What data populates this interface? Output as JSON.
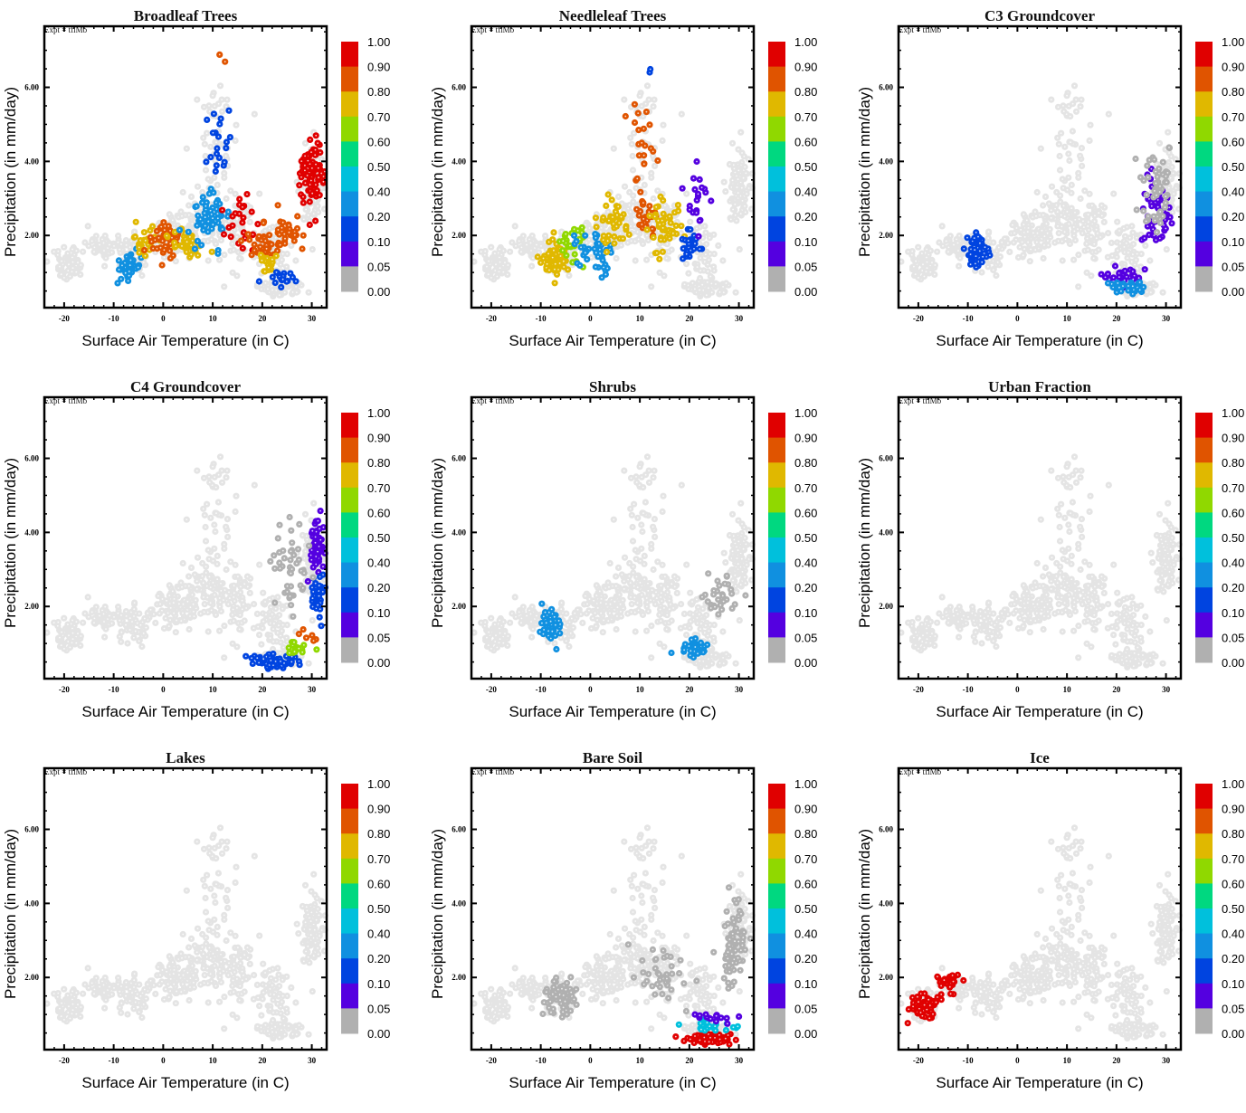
{
  "figure": {
    "expt_label": "Expt = tflMb",
    "xlabel": "Surface Air Temperature (in C)",
    "ylabel": "Precipitation (in mm/day)"
  },
  "chart_data": {
    "type": "scatter",
    "layout": "3x3 grid",
    "xlabel": "Surface Air Temperature (in C)",
    "ylabel": "Precipitation (in mm/day)",
    "xlim": [
      -24,
      33
    ],
    "ylim": [
      0.05,
      7.65
    ],
    "x_ticks": [
      "-20",
      "-10",
      "0",
      "10",
      "20",
      "30"
    ],
    "y_ticks": [
      "2.00",
      "4.00",
      "6.00"
    ],
    "x_tick_values": [
      -20,
      -10,
      0,
      10,
      20,
      30
    ],
    "y_tick_values": [
      2,
      4,
      6
    ],
    "colorbar": {
      "labels": [
        "1.00",
        "0.90",
        "0.80",
        "0.70",
        "0.60",
        "0.50",
        "0.40",
        "0.20",
        "0.10",
        "0.05",
        "0.00"
      ],
      "bins": [
        {
          "min": 0.9,
          "max": 1.0,
          "color": "#e00000"
        },
        {
          "min": 0.8,
          "max": 0.9,
          "color": "#e05400"
        },
        {
          "min": 0.7,
          "max": 0.8,
          "color": "#e0b800"
        },
        {
          "min": 0.6,
          "max": 0.7,
          "color": "#90d800"
        },
        {
          "min": 0.5,
          "max": 0.6,
          "color": "#00d880"
        },
        {
          "min": 0.4,
          "max": 0.5,
          "color": "#00c0dc"
        },
        {
          "min": 0.2,
          "max": 0.4,
          "color": "#1090e0"
        },
        {
          "min": 0.1,
          "max": 0.2,
          "color": "#0044e0"
        },
        {
          "min": 0.05,
          "max": 0.1,
          "color": "#5400e0"
        },
        {
          "min": 0.0,
          "max": 0.05,
          "color": "#b0b0b0"
        }
      ],
      "masked_color": "#e4e4e4"
    },
    "background_cloud": [
      {
        "x": -19,
        "y": 1.2,
        "sx": 3,
        "sy": 0.3,
        "n": 60
      },
      {
        "x": -12,
        "y": 1.7,
        "sx": 3,
        "sy": 0.3,
        "n": 50
      },
      {
        "x": -6,
        "y": 1.5,
        "sx": 3,
        "sy": 0.4,
        "n": 60
      },
      {
        "x": 2,
        "y": 2.0,
        "sx": 4,
        "sy": 0.5,
        "n": 90
      },
      {
        "x": 9,
        "y": 2.4,
        "sx": 4,
        "sy": 0.7,
        "n": 90
      },
      {
        "x": 15,
        "y": 2.2,
        "sx": 3,
        "sy": 0.8,
        "n": 70
      },
      {
        "x": 22,
        "y": 1.6,
        "sx": 3,
        "sy": 0.7,
        "n": 60
      },
      {
        "x": 24,
        "y": 0.6,
        "sx": 4,
        "sy": 0.25,
        "n": 60
      },
      {
        "x": 30,
        "y": 3.2,
        "sx": 2,
        "sy": 1.0,
        "n": 90
      },
      {
        "x": 10,
        "y": 4.3,
        "sx": 5,
        "sy": 0.8,
        "n": 30
      },
      {
        "x": 11,
        "y": 5.5,
        "sx": 3,
        "sy": 0.6,
        "n": 12
      }
    ],
    "panels": [
      {
        "title": "Broadleaf Trees",
        "clusters": [
          {
            "x": -7,
            "y": 1.2,
            "sx": 2,
            "sy": 0.3,
            "n": 40,
            "v": 0.3
          },
          {
            "x": -4,
            "y": 1.8,
            "sx": 2,
            "sy": 0.4,
            "n": 25,
            "v": 0.75
          },
          {
            "x": 1,
            "y": 1.9,
            "sx": 2.5,
            "sy": 0.4,
            "n": 45,
            "v": 0.85
          },
          {
            "x": 5,
            "y": 1.8,
            "sx": 2.5,
            "sy": 0.4,
            "n": 35,
            "v": 0.75
          },
          {
            "x": 9,
            "y": 2.4,
            "sx": 3,
            "sy": 0.8,
            "n": 60,
            "v": 0.3
          },
          {
            "x": 11,
            "y": 4.3,
            "sx": 3,
            "sy": 0.8,
            "n": 20,
            "v": 0.15
          },
          {
            "x": 16,
            "y": 2.3,
            "sx": 3,
            "sy": 0.6,
            "n": 25,
            "v": 0.95
          },
          {
            "x": 20,
            "y": 1.7,
            "sx": 3,
            "sy": 0.4,
            "n": 40,
            "v": 0.85
          },
          {
            "x": 21,
            "y": 1.2,
            "sx": 2,
            "sy": 0.3,
            "n": 20,
            "v": 0.75
          },
          {
            "x": 24,
            "y": 0.8,
            "sx": 3,
            "sy": 0.2,
            "n": 18,
            "v": 0.12
          },
          {
            "x": 30,
            "y": 3.6,
            "sx": 2,
            "sy": 0.8,
            "n": 90,
            "v": 0.95
          },
          {
            "x": 26,
            "y": 2.1,
            "sx": 3,
            "sy": 0.4,
            "n": 30,
            "v": 0.85
          },
          {
            "x": 12,
            "y": 6.8,
            "sx": 0.5,
            "sy": 0.3,
            "n": 2,
            "v": 0.85
          }
        ]
      },
      {
        "title": "Needleleaf Trees",
        "clusters": [
          {
            "x": -7,
            "y": 1.4,
            "sx": 2,
            "sy": 0.35,
            "n": 80,
            "v": 0.75
          },
          {
            "x": -4,
            "y": 1.8,
            "sx": 2,
            "sy": 0.5,
            "n": 25,
            "v": 0.65
          },
          {
            "x": 1,
            "y": 1.5,
            "sx": 3,
            "sy": 0.4,
            "n": 40,
            "v": 0.3
          },
          {
            "x": 5,
            "y": 2.2,
            "sx": 3,
            "sy": 0.5,
            "n": 40,
            "v": 0.75
          },
          {
            "x": 11,
            "y": 2.5,
            "sx": 2,
            "sy": 0.5,
            "n": 30,
            "v": 0.85
          },
          {
            "x": 15,
            "y": 2.2,
            "sx": 3,
            "sy": 0.6,
            "n": 50,
            "v": 0.75
          },
          {
            "x": 20,
            "y": 1.7,
            "sx": 1.5,
            "sy": 0.3,
            "n": 25,
            "v": 0.15
          },
          {
            "x": 22,
            "y": 3.2,
            "sx": 2,
            "sy": 0.7,
            "n": 20,
            "v": 0.07
          },
          {
            "x": 10,
            "y": 4.5,
            "sx": 2.5,
            "sy": 0.8,
            "n": 20,
            "v": 0.8
          },
          {
            "x": 12,
            "y": 6.5,
            "sx": 0.3,
            "sy": 0.4,
            "n": 2,
            "v": 0.15
          }
        ]
      },
      {
        "title": "C3 Groundcover",
        "clusters": [
          {
            "x": -8,
            "y": 1.6,
            "sx": 1.8,
            "sy": 0.35,
            "n": 60,
            "v": 0.15
          },
          {
            "x": 21,
            "y": 0.9,
            "sx": 3,
            "sy": 0.2,
            "n": 35,
            "v": 0.07
          },
          {
            "x": 22,
            "y": 0.6,
            "sx": 3,
            "sy": 0.15,
            "n": 30,
            "v": 0.3
          },
          {
            "x": 28,
            "y": 2.6,
            "sx": 2.5,
            "sy": 0.8,
            "n": 60,
            "v": 0.07
          },
          {
            "x": 28,
            "y": 3.3,
            "sx": 3,
            "sy": 1.2,
            "n": 50,
            "v": 0.0
          }
        ]
      },
      {
        "title": "C4 Groundcover",
        "clusters": [
          {
            "x": 31,
            "y": 3.6,
            "sx": 1,
            "sy": 0.6,
            "n": 60,
            "v": 0.07
          },
          {
            "x": 31,
            "y": 2.3,
            "sx": 1.2,
            "sy": 0.5,
            "n": 35,
            "v": 0.15
          },
          {
            "x": 22,
            "y": 0.5,
            "sx": 3.5,
            "sy": 0.15,
            "n": 60,
            "v": 0.12
          },
          {
            "x": 27,
            "y": 0.9,
            "sx": 3,
            "sy": 0.2,
            "n": 20,
            "v": 0.6
          },
          {
            "x": 29,
            "y": 1.2,
            "sx": 2,
            "sy": 0.2,
            "n": 6,
            "v": 0.85
          },
          {
            "x": 26,
            "y": 3.0,
            "sx": 3,
            "sy": 1.0,
            "n": 45,
            "v": 0.0
          }
        ]
      },
      {
        "title": "Shrubs",
        "clusters": [
          {
            "x": -8,
            "y": 1.5,
            "sx": 1.5,
            "sy": 0.35,
            "n": 55,
            "v": 0.25
          },
          {
            "x": 21,
            "y": 0.9,
            "sx": 2.5,
            "sy": 0.2,
            "n": 30,
            "v": 0.35
          },
          {
            "x": 26,
            "y": 2.3,
            "sx": 3,
            "sy": 0.6,
            "n": 30,
            "v": 0.0
          }
        ]
      },
      {
        "title": "Urban Fraction",
        "clusters": []
      },
      {
        "title": "Lakes",
        "clusters": []
      },
      {
        "title": "Bare Soil",
        "clusters": [
          {
            "x": -6,
            "y": 1.5,
            "sx": 2.5,
            "sy": 0.4,
            "n": 70,
            "v": 0.0
          },
          {
            "x": 29,
            "y": 2.8,
            "sx": 2,
            "sy": 0.9,
            "n": 80,
            "v": 0.0
          },
          {
            "x": 15,
            "y": 2.0,
            "sx": 6,
            "sy": 0.8,
            "n": 40,
            "v": 0.0
          },
          {
            "x": 24,
            "y": 0.35,
            "sx": 3.5,
            "sy": 0.12,
            "n": 90,
            "v": 0.95
          },
          {
            "x": 24,
            "y": 0.7,
            "sx": 4,
            "sy": 0.15,
            "n": 25,
            "v": 0.45
          },
          {
            "x": 25,
            "y": 0.95,
            "sx": 5,
            "sy": 0.15,
            "n": 15,
            "v": 0.07
          }
        ]
      },
      {
        "title": "Ice",
        "clusters": [
          {
            "x": -19,
            "y": 1.2,
            "sx": 2.5,
            "sy": 0.3,
            "n": 70,
            "v": 0.95
          },
          {
            "x": -14,
            "y": 1.9,
            "sx": 2,
            "sy": 0.3,
            "n": 35,
            "v": 0.95
          }
        ]
      }
    ]
  }
}
